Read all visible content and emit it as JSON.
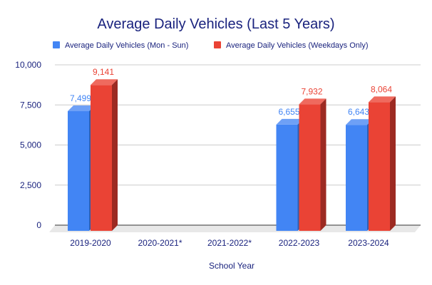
{
  "chart_data": {
    "type": "bar",
    "title": "Average Daily Vehicles (Last 5 Years)",
    "xlabel": "School Year",
    "ylabel": "",
    "ylim": [
      0,
      10000
    ],
    "yticks": [
      "0",
      "2,500",
      "5,000",
      "7,500",
      "10,000"
    ],
    "ytick_values": [
      0,
      2500,
      5000,
      7500,
      10000
    ],
    "categories": [
      "2019-2020",
      "2020-2021*",
      "2021-2022*",
      "2022-2023",
      "2023-2024"
    ],
    "series": [
      {
        "name": "Average Daily Vehicles (Mon - Sun)",
        "color": "#4285f4",
        "values": [
          7499,
          null,
          null,
          6655,
          6643
        ],
        "labels": [
          "7,499",
          "",
          "",
          "6,655",
          "6,643"
        ]
      },
      {
        "name": "Average Daily Vehicles (Weekdays Only)",
        "color": "#ea4335",
        "values": [
          9141,
          null,
          null,
          7932,
          8064
        ],
        "labels": [
          "9,141",
          "",
          "",
          "7,932",
          "8,064"
        ]
      }
    ],
    "grid": true,
    "legend": "top",
    "style": "3d"
  }
}
